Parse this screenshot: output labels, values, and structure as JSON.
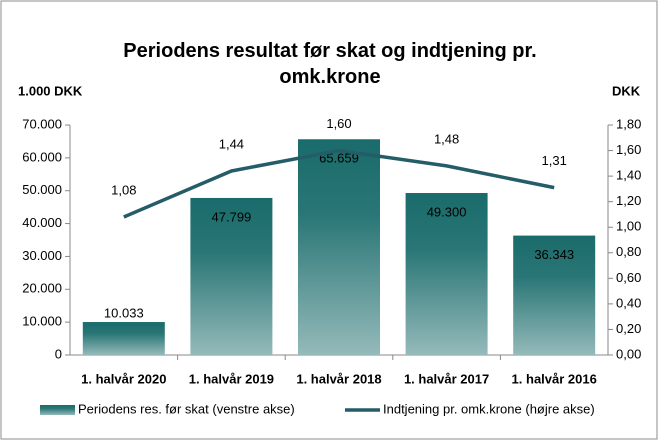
{
  "chart_data": {
    "type": "bar",
    "title": "Periodens resultat før skat og indtjening pr. omk.krone",
    "y_axis_label": "1.000 DKK",
    "y2_axis_label": "DKK",
    "categories": [
      "1. halvår 2020",
      "1. halvår 2019",
      "1. halvår 2018",
      "1. halvår 2017",
      "1. halvår 2016"
    ],
    "series": [
      {
        "name": "Periodens res. før skat (venstre akse)",
        "type": "bar",
        "color": "#1a6b6b",
        "values": [
          10033,
          47799,
          65659,
          49300,
          36343
        ],
        "value_labels": [
          "10.033",
          "47.799",
          "65.659",
          "49.300",
          "36.343"
        ]
      },
      {
        "name": "Indtjening pr. omk.krone (højre akse)",
        "type": "line",
        "axis": "y2",
        "color": "#245c68",
        "values": [
          1.08,
          1.44,
          1.6,
          1.48,
          1.31
        ],
        "value_labels": [
          "1,08",
          "1,44",
          "1,60",
          "1,48",
          "1,31"
        ]
      }
    ],
    "ylim": [
      0,
      70000
    ],
    "yticks": [
      0,
      {
        "value": 10000,
        "label": "10.000"
      },
      {
        "value": 20000,
        "label": "20.000"
      },
      {
        "value": 30000,
        "label": "30.000"
      },
      {
        "value": 40000,
        "label": "40.000"
      },
      {
        "value": 50000,
        "label": "50.000"
      },
      {
        "value": 60000,
        "label": "60.000"
      },
      {
        "value": 70000,
        "label": "70.000"
      }
    ],
    "y2lim": [
      0,
      1.8
    ],
    "y2ticks": [
      {
        "value": 0,
        "label": "0,00"
      },
      {
        "value": 0.2,
        "label": "0,20"
      },
      {
        "value": 0.4,
        "label": "0,40"
      },
      {
        "value": 0.6,
        "label": "0,60"
      },
      {
        "value": 0.8,
        "label": "0,80"
      },
      {
        "value": 1.0,
        "label": "1,00"
      },
      {
        "value": 1.2,
        "label": "1,20"
      },
      {
        "value": 1.4,
        "label": "1,40"
      },
      {
        "value": 1.6,
        "label": "1,60"
      },
      {
        "value": 1.8,
        "label": "1,80"
      }
    ],
    "legend": "bottom"
  }
}
